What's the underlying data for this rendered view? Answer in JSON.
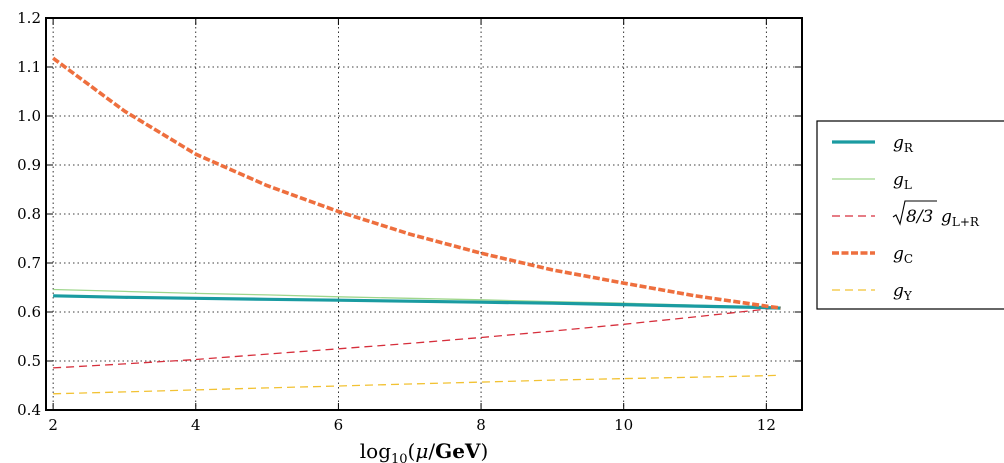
{
  "chart_data": {
    "type": "line",
    "title": "",
    "xlabel": "log10(μ/GeV)",
    "ylabel": "",
    "xlim": [
      1.9,
      12.5
    ],
    "ylim": [
      0.4,
      1.2
    ],
    "xticks": [
      2,
      4,
      6,
      8,
      10,
      12
    ],
    "yticks": [
      0.4,
      0.5,
      0.6,
      0.7,
      0.8,
      0.9,
      1.0,
      1.1,
      1.2
    ],
    "xtick_labels": [
      "2",
      "4",
      "6",
      "8",
      "10",
      "12"
    ],
    "ytick_labels": [
      "0.4",
      "0.5",
      "0.6",
      "0.7",
      "0.8",
      "0.9",
      "1.0",
      "1.1",
      "1.2"
    ],
    "grid": true,
    "legend_position": "outside-right",
    "x": [
      2,
      3,
      4,
      5,
      6,
      7,
      8,
      9,
      10,
      11,
      12,
      12.2
    ],
    "series": [
      {
        "name": "g_R",
        "label_base": "g",
        "label_sub": "R",
        "color": "#1a9ba1",
        "style": "solid-thick",
        "values": [
          0.633,
          0.63,
          0.628,
          0.626,
          0.624,
          0.622,
          0.62,
          0.618,
          0.615,
          0.612,
          0.609,
          0.608
        ]
      },
      {
        "name": "g_L",
        "label_base": "g",
        "label_sub": "L",
        "color": "#9fd68c",
        "style": "solid-thin",
        "values": [
          0.646,
          0.642,
          0.638,
          0.635,
          0.631,
          0.628,
          0.625,
          0.621,
          0.618,
          0.614,
          0.61,
          0.609
        ]
      },
      {
        "name": "√(8/3) g_L+R",
        "label_root": "8/3",
        "label_base": "g",
        "label_sub": "L+R",
        "color": "#d62f3c",
        "style": "dashed-thin",
        "values": [
          0.486,
          0.494,
          0.503,
          0.514,
          0.525,
          0.536,
          0.548,
          0.561,
          0.575,
          0.59,
          0.606,
          0.609
        ]
      },
      {
        "name": "g_C",
        "label_base": "g",
        "label_sub": "C",
        "color": "#ee6f3e",
        "style": "dashed-thick",
        "values": [
          1.118,
          1.01,
          0.922,
          0.858,
          0.805,
          0.759,
          0.72,
          0.686,
          0.659,
          0.633,
          0.612,
          0.608
        ]
      },
      {
        "name": "g_Y",
        "label_base": "g",
        "label_sub": "Y",
        "color": "#f2c233",
        "style": "dashed-thin",
        "values": [
          0.433,
          0.437,
          0.441,
          0.445,
          0.449,
          0.453,
          0.457,
          0.461,
          0.464,
          0.467,
          0.47,
          0.471
        ]
      }
    ]
  }
}
